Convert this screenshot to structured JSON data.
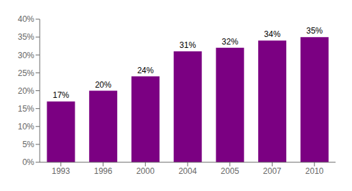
{
  "chart_data": {
    "type": "bar",
    "categories": [
      "1993",
      "1996",
      "2000",
      "2004",
      "2005",
      "2007",
      "2010"
    ],
    "values": [
      17,
      20,
      24,
      31,
      32,
      34,
      35
    ],
    "value_labels": [
      "17%",
      "20%",
      "24%",
      "31%",
      "32%",
      "34%",
      "35%"
    ],
    "color": "#7B0082",
    "ylim": [
      0,
      40
    ],
    "yticks": [
      {
        "value": 0,
        "label": "0%"
      },
      {
        "value": 5,
        "label": "5%"
      },
      {
        "value": 10,
        "label": "10%"
      },
      {
        "value": 15,
        "label": "15%"
      },
      {
        "value": 20,
        "label": "20%"
      },
      {
        "value": 25,
        "label": "25%"
      },
      {
        "value": 30,
        "label": "30%"
      },
      {
        "value": 35,
        "label": "35%"
      },
      {
        "value": 40,
        "label": "40%"
      }
    ],
    "data_labels": true,
    "grid": false
  }
}
